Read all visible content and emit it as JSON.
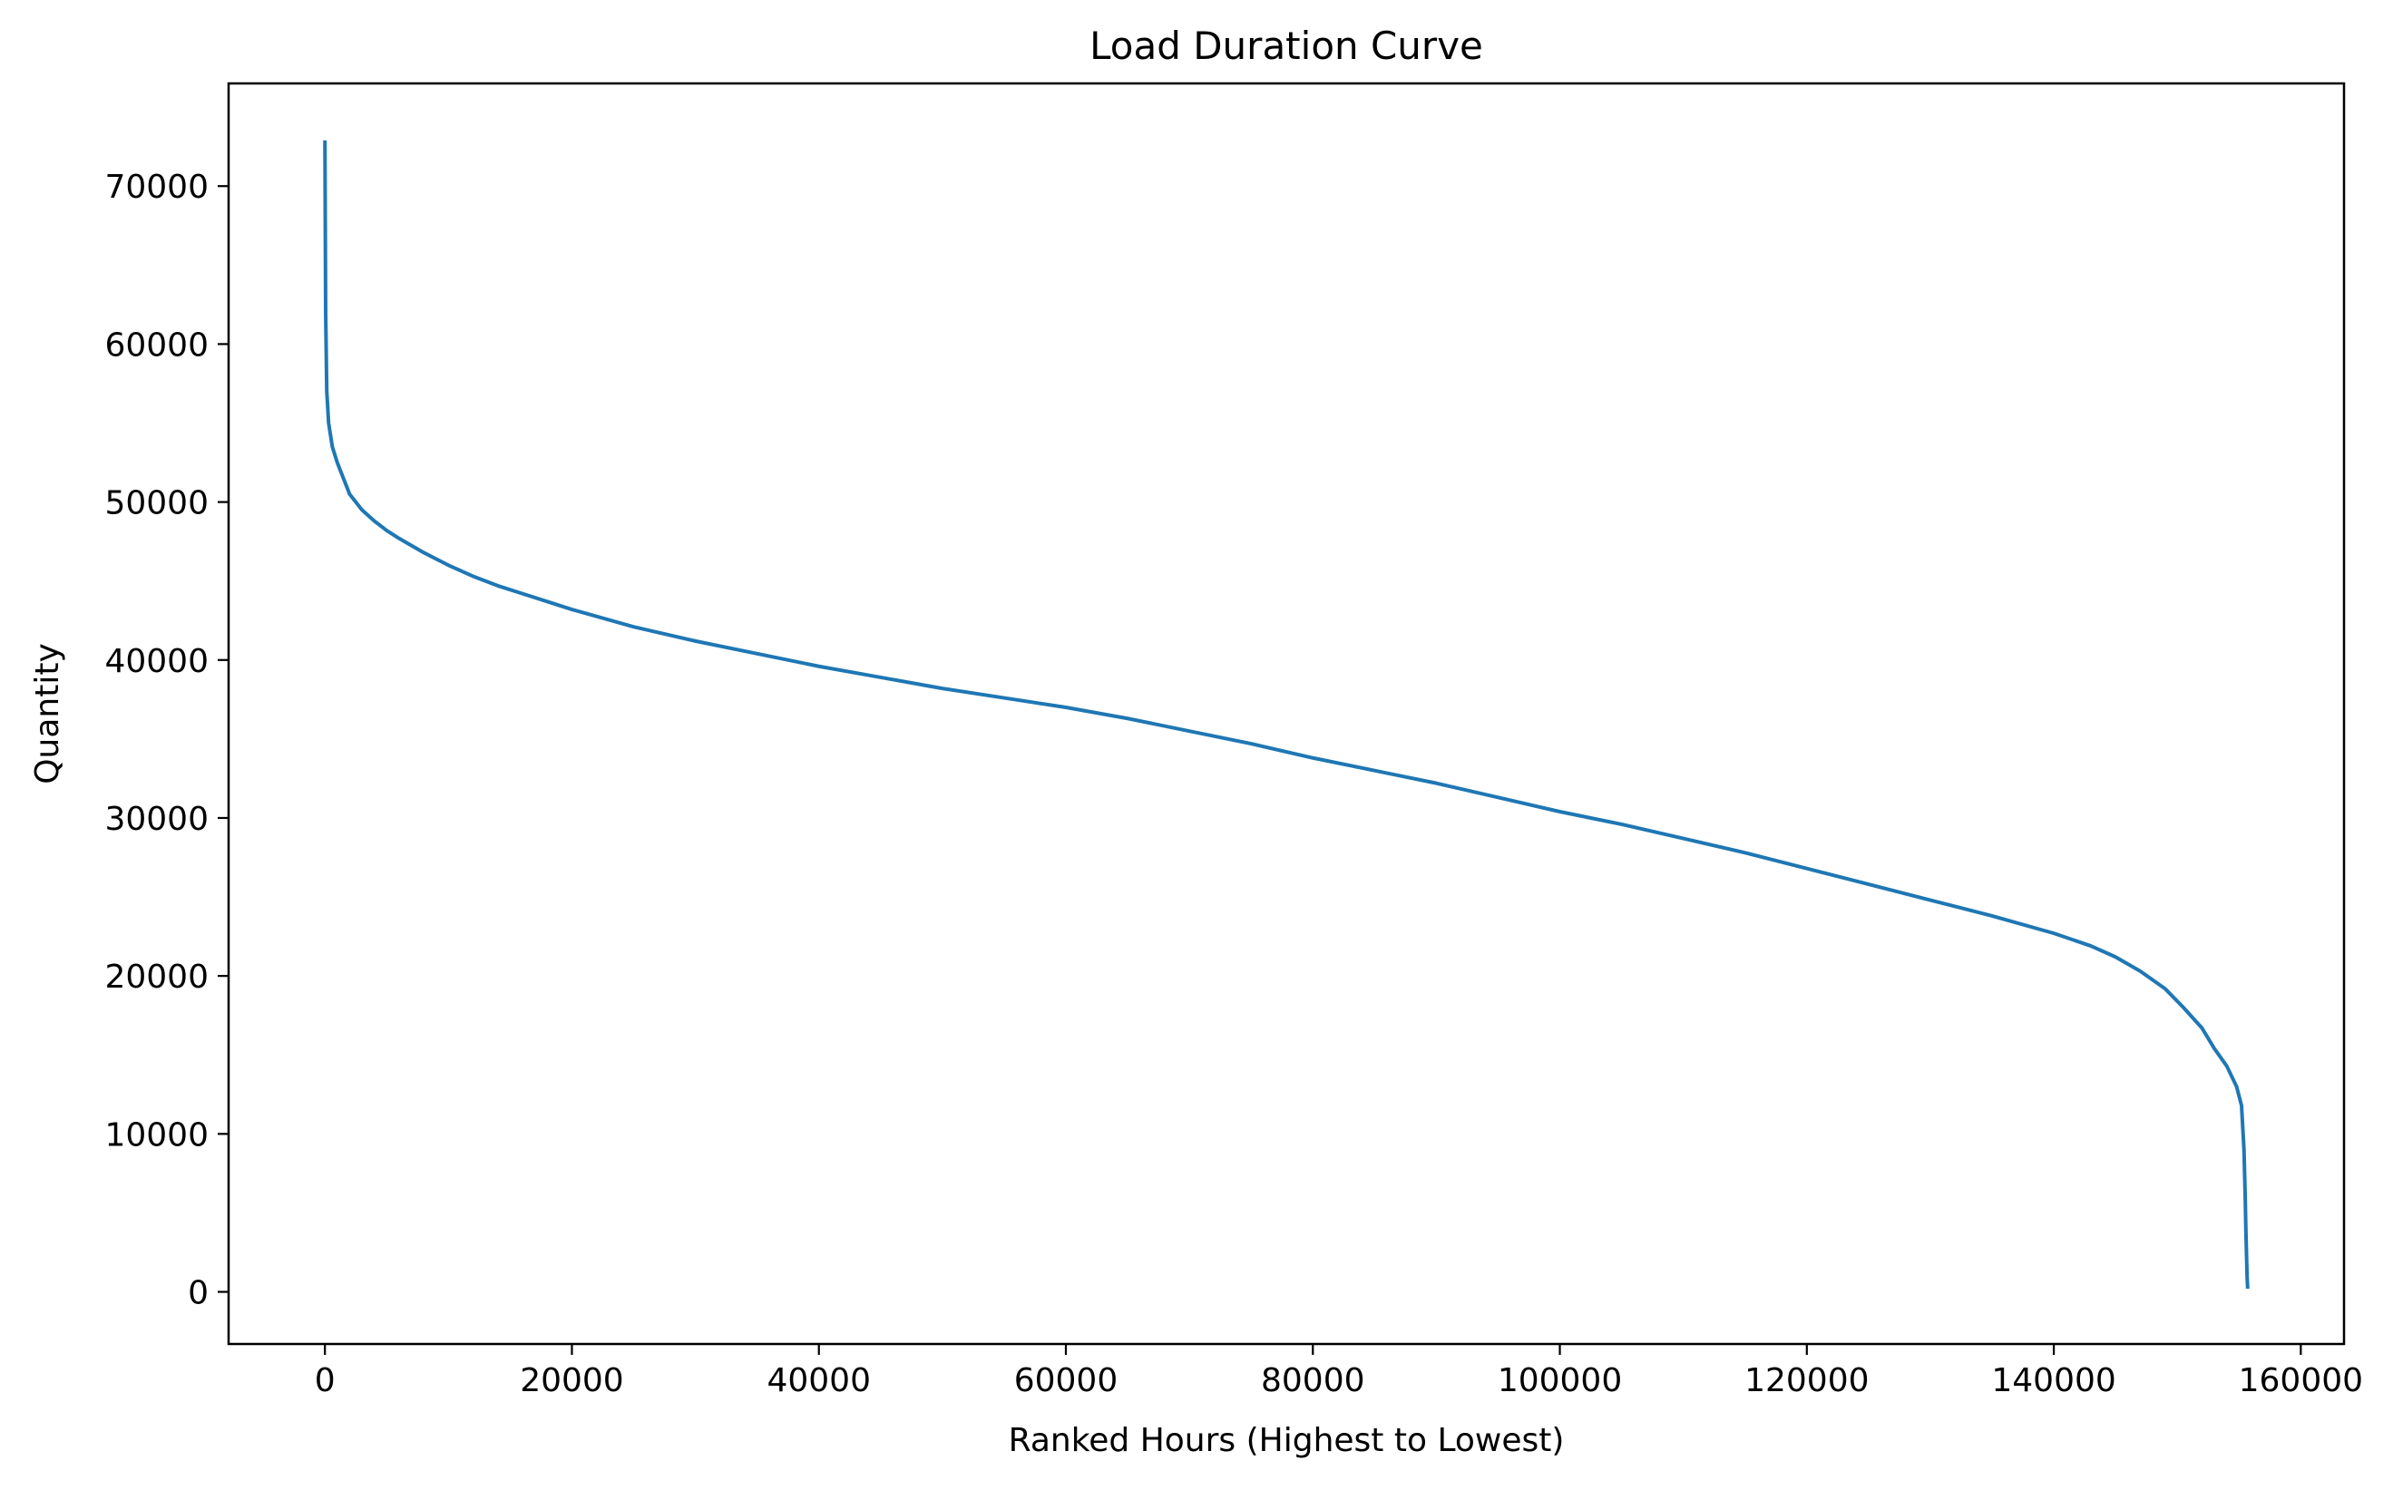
{
  "chart_data": {
    "type": "line",
    "title": "Load Duration Curve",
    "xlabel": "Ranked Hours (Highest to Lowest)",
    "ylabel": "Quantity",
    "xlim": [
      -7800,
      163500
    ],
    "ylim": [
      -3300,
      76500
    ],
    "xticks": [
      0,
      20000,
      40000,
      60000,
      80000,
      100000,
      120000,
      140000,
      160000
    ],
    "xtick_labels": [
      "0",
      "20000",
      "40000",
      "60000",
      "80000",
      "100000",
      "120000",
      "140000",
      "160000"
    ],
    "yticks": [
      0,
      10000,
      20000,
      30000,
      40000,
      50000,
      60000,
      70000
    ],
    "ytick_labels": [
      "0",
      "10000",
      "20000",
      "30000",
      "40000",
      "50000",
      "60000",
      "70000"
    ],
    "grid": false,
    "legend": "none",
    "series": [
      {
        "color": "#1f77b4",
        "x": [
          0,
          60,
          150,
          300,
          600,
          1000,
          1500,
          2000,
          3000,
          4000,
          5000,
          6000,
          8000,
          10000,
          12000,
          14000,
          16000,
          18000,
          20000,
          25000,
          30000,
          35000,
          40000,
          45000,
          50000,
          55000,
          60000,
          65000,
          70000,
          75000,
          80000,
          85000,
          90000,
          95000,
          100000,
          105000,
          110000,
          115000,
          120000,
          125000,
          130000,
          135000,
          140000,
          143000,
          145000,
          147000,
          149000,
          150500,
          152000,
          153000,
          154000,
          154800,
          155200,
          155400,
          155500,
          155550,
          155600,
          155650,
          155700
        ],
        "y": [
          72900,
          62000,
          57000,
          55000,
          53500,
          52500,
          51500,
          50500,
          49500,
          48800,
          48200,
          47700,
          46800,
          46000,
          45300,
          44700,
          44200,
          43700,
          43200,
          42100,
          41200,
          40400,
          39600,
          38900,
          38200,
          37600,
          37000,
          36300,
          35500,
          34700,
          33800,
          33000,
          32200,
          31300,
          30400,
          29600,
          28700,
          27800,
          26800,
          25800,
          24800,
          23800,
          22700,
          21900,
          21200,
          20300,
          19200,
          18000,
          16700,
          15400,
          14300,
          13000,
          11800,
          9000,
          6000,
          4000,
          2500,
          1000,
          200
        ]
      }
    ]
  }
}
